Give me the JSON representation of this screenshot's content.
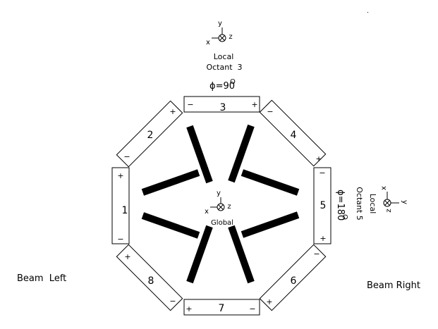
{
  "segments": [
    {
      "label": "1",
      "plus": "+",
      "minus": "−"
    },
    {
      "label": "2",
      "plus": "+",
      "minus": "−"
    },
    {
      "label": "3",
      "plus": "+",
      "minus": "−"
    },
    {
      "label": "4",
      "plus": "+",
      "minus": "−"
    },
    {
      "label": "5",
      "plus": "+",
      "minus": "−"
    },
    {
      "label": "6",
      "plus": "+",
      "minus": "−"
    },
    {
      "label": "7",
      "plus": "+",
      "minus": "−"
    },
    {
      "label": "8",
      "plus": "+",
      "minus": "−"
    }
  ],
  "global_axes": {
    "x": "x",
    "y": "y",
    "z": "z",
    "label": "Global"
  },
  "octant3": {
    "x": "x",
    "y": "y",
    "z": "z",
    "line1": "Local",
    "line2": "Octant  3",
    "angle": "ϕ=90",
    "degree": "O"
  },
  "octant5": {
    "x": "x",
    "y": "y",
    "z": "z",
    "line1": "Local",
    "line2": "Octant 5",
    "angle": "ϕ=180",
    "degree": "O"
  },
  "beam_left": "Beam  Left",
  "beam_right": "Beam Right",
  "bar_count": 8,
  "colors": {
    "ink": "#000000",
    "paper": "#ffffff"
  }
}
